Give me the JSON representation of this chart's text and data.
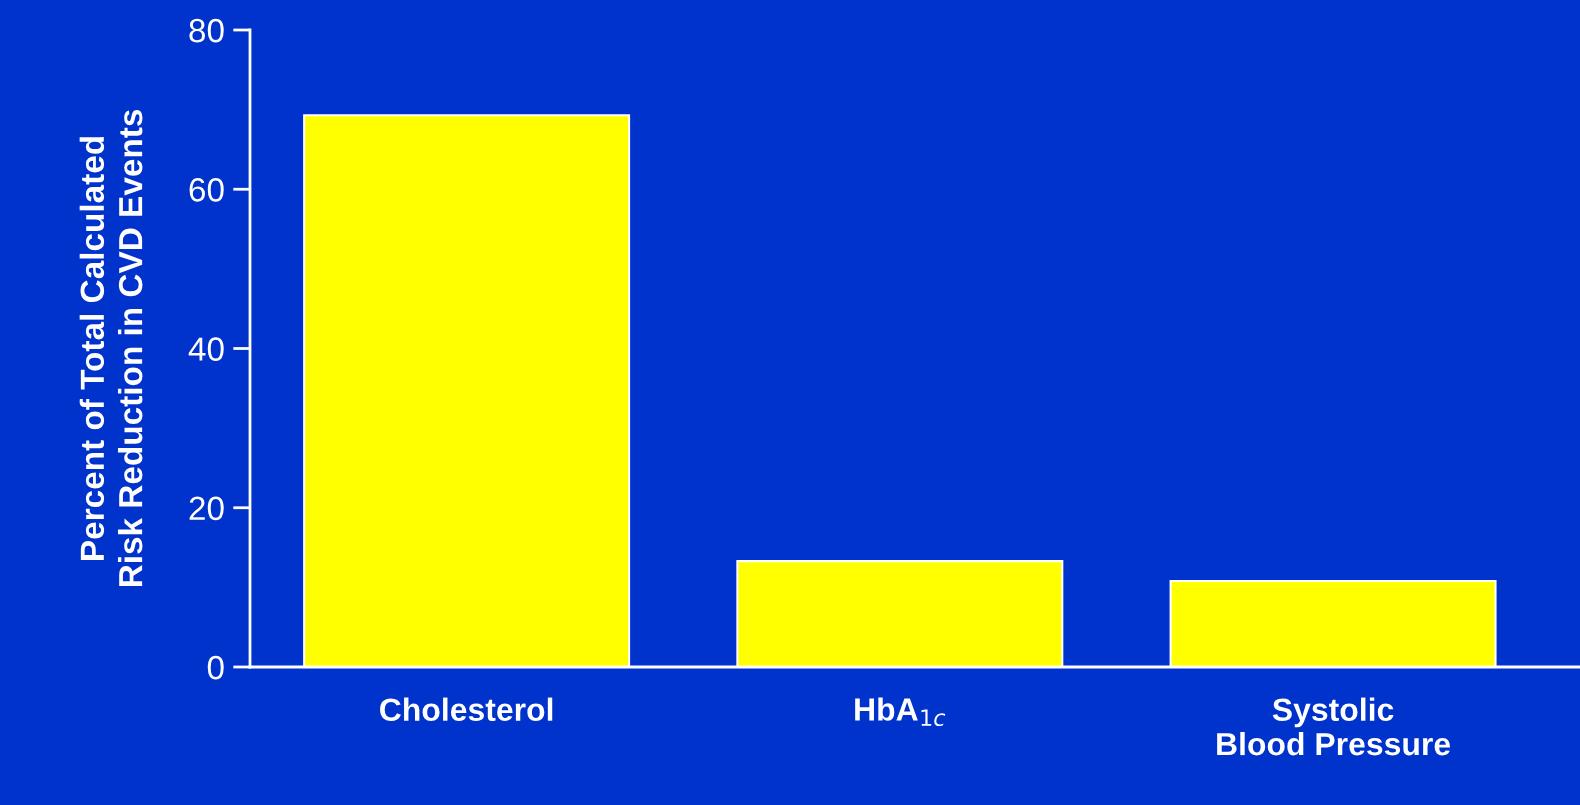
{
  "chart_data": {
    "type": "bar",
    "ylabel": "Percent of Total Calculated\nRisk Reduction in CVD Events",
    "categories": [
      "Cholesterol",
      "HbA$_{1c}$",
      "Systolic\nBlood Pressure"
    ],
    "values": [
      69.3,
      13.3,
      10.8
    ],
    "color": "#ffff00",
    "ylim": [
      0,
      80
    ],
    "yticks": [
      0,
      20,
      40,
      60,
      80
    ],
    "grid": false,
    "legend": false
  }
}
